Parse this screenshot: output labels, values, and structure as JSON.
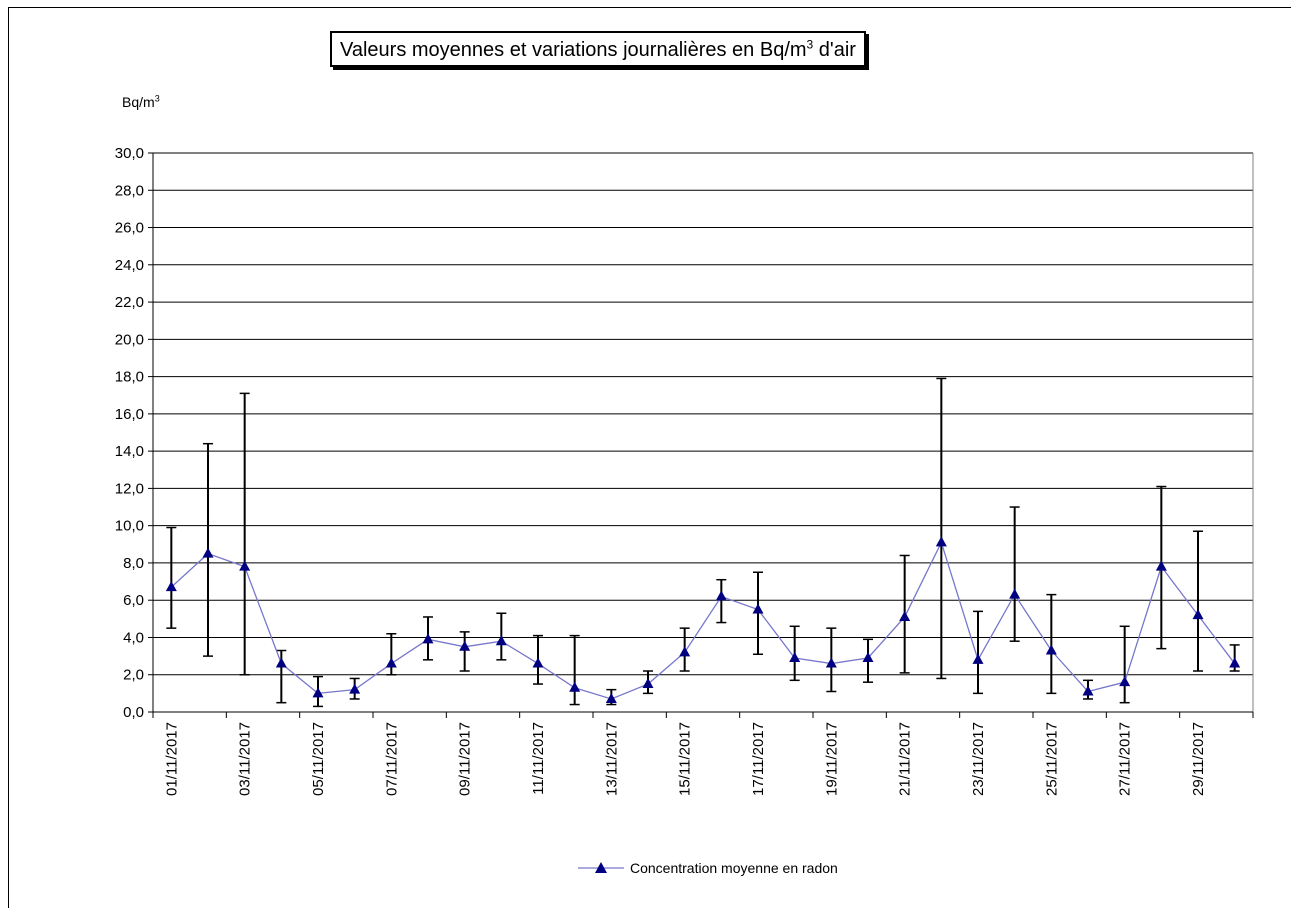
{
  "header": {
    "title_main": "Valeurs moyennes et variations journalières en Bq/m",
    "title_sup": "3",
    "title_tail": " d'air",
    "y_unit_main": "Bq/m",
    "y_unit_sup": "3"
  },
  "colors": {
    "series_line": "#7777cc",
    "series_marker": "#000080",
    "grid": "#000000",
    "error_bar": "#000000"
  },
  "chart_data": {
    "type": "line",
    "title": "Valeurs moyennes et variations journalières en Bq/m3 d'air",
    "ylabel": "Bq/m3",
    "xlabel": "",
    "ylim": [
      0,
      30
    ],
    "y_ticks": [
      "0,0",
      "2,0",
      "4,0",
      "6,0",
      "8,0",
      "10,0",
      "12,0",
      "14,0",
      "16,0",
      "18,0",
      "20,0",
      "22,0",
      "24,0",
      "26,0",
      "28,0",
      "30,0"
    ],
    "grid": true,
    "legend_position": "bottom",
    "x_tick_labels": [
      "01/11/2017",
      "03/11/2017",
      "05/11/2017",
      "07/11/2017",
      "09/11/2017",
      "11/11/2017",
      "13/11/2017",
      "15/11/2017",
      "17/11/2017",
      "19/11/2017",
      "21/11/2017",
      "23/11/2017",
      "25/11/2017",
      "27/11/2017",
      "29/11/2017"
    ],
    "x": [
      "01/11/2017",
      "02/11/2017",
      "03/11/2017",
      "04/11/2017",
      "05/11/2017",
      "06/11/2017",
      "07/11/2017",
      "08/11/2017",
      "09/11/2017",
      "10/11/2017",
      "11/11/2017",
      "12/11/2017",
      "13/11/2017",
      "14/11/2017",
      "15/11/2017",
      "16/11/2017",
      "17/11/2017",
      "18/11/2017",
      "19/11/2017",
      "20/11/2017",
      "21/11/2017",
      "22/11/2017",
      "23/11/2017",
      "24/11/2017",
      "25/11/2017",
      "26/11/2017",
      "27/11/2017",
      "28/11/2017",
      "29/11/2017",
      "30/11/2017"
    ],
    "series": [
      {
        "name": "Concentration moyenne en radon",
        "values": [
          6.7,
          8.5,
          7.8,
          2.6,
          1.0,
          1.2,
          2.6,
          3.9,
          3.5,
          3.8,
          2.6,
          1.3,
          0.7,
          1.5,
          3.2,
          6.2,
          5.5,
          2.9,
          2.6,
          2.9,
          5.1,
          9.1,
          2.8,
          6.3,
          3.3,
          1.1,
          1.6,
          7.8,
          5.2,
          2.6
        ],
        "min": [
          4.5,
          3.0,
          2.0,
          0.5,
          0.3,
          0.7,
          2.0,
          2.8,
          2.2,
          2.8,
          1.5,
          0.4,
          0.4,
          1.0,
          2.2,
          4.8,
          3.1,
          1.7,
          1.1,
          1.6,
          2.1,
          1.8,
          1.0,
          3.8,
          1.0,
          0.7,
          0.5,
          3.4,
          2.2,
          2.2
        ],
        "max": [
          9.9,
          14.4,
          17.1,
          3.3,
          1.9,
          1.8,
          4.2,
          5.1,
          4.3,
          5.3,
          4.1,
          4.1,
          1.2,
          2.2,
          4.5,
          7.1,
          7.5,
          4.6,
          4.5,
          3.9,
          8.4,
          17.9,
          5.4,
          11.0,
          6.3,
          1.7,
          4.6,
          12.1,
          9.7,
          3.6
        ]
      }
    ]
  }
}
